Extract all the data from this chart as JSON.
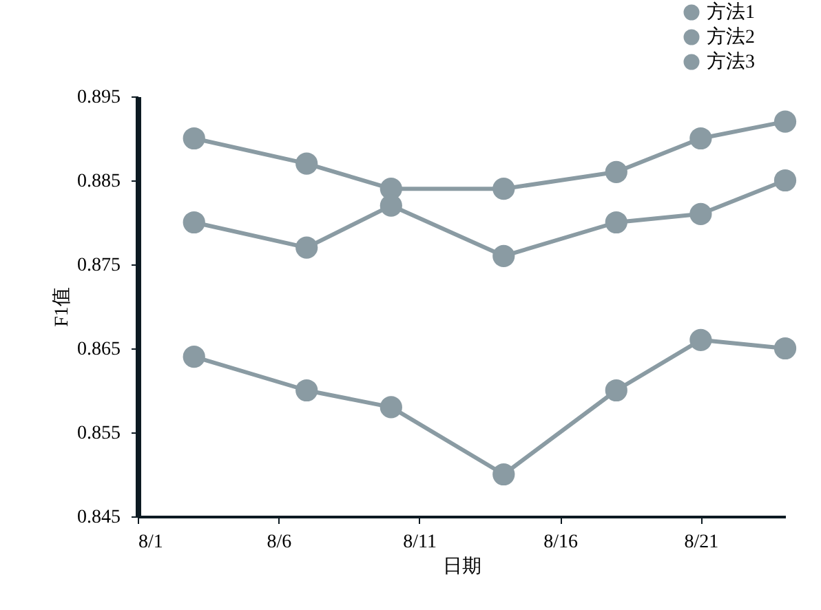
{
  "chart_data": {
    "type": "line",
    "xlabel": "日期",
    "ylabel": "F1值",
    "x": [
      "--08-03",
      "--08-07",
      "--08-10",
      "--08-14",
      "--08-18",
      "--08-21",
      "--08-24"
    ],
    "series": [
      {
        "name": "方法1",
        "color": "#8a9ba3",
        "values": [
          0.89,
          0.887,
          0.884,
          0.884,
          0.886,
          0.89,
          0.892
        ]
      },
      {
        "name": "方法2",
        "color": "#8a9ba3",
        "values": [
          0.88,
          0.877,
          0.882,
          0.876,
          0.88,
          0.881,
          0.885
        ]
      },
      {
        "name": "方法3",
        "color": "#8a9ba3",
        "values": [
          0.864,
          0.86,
          0.858,
          0.85,
          0.86,
          0.866,
          0.865
        ]
      }
    ],
    "xlim": [
      "--08-01",
      "--08-24"
    ],
    "xticks": [
      {
        "value": "--08-01",
        "label": "8/1"
      },
      {
        "value": "--08-06",
        "label": "8/6"
      },
      {
        "value": "--08-11",
        "label": "8/11"
      },
      {
        "value": "--08-16",
        "label": "8/16"
      },
      {
        "value": "--08-21",
        "label": "8/21"
      }
    ],
    "ylim": [
      0.845,
      0.895
    ],
    "yticks": [
      0.845,
      0.855,
      0.865,
      0.875,
      0.885,
      0.895
    ],
    "grid": false,
    "legend": "top right",
    "marker": "circle",
    "line_style": "solid"
  }
}
